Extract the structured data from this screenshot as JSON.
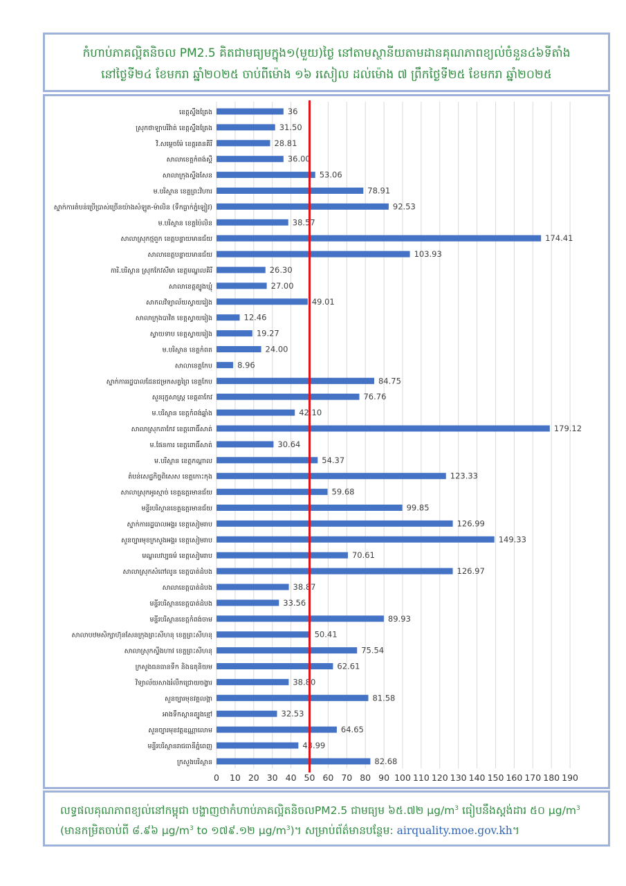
{
  "header": {
    "line1": "កំហាប់ភាគល្អិតនិចល PM2.5 គិតជាមធ្យមក្នុង១(មួយ)ថ្ងៃ នៅតាមស្ថានីយតាមដានគុណភាពខ្យល់ចំនួន៤៦ទីតាំង",
    "line2": "នៅថ្ងៃទី២៤ ខែមករា ឆ្នាំ២០២៥ ចាប់ពីម៉ោង ១៦ រសៀល ដល់ម៉ោង ៧ ព្រឹកថ្ងៃទី២៥ ខែមករា ឆ្នាំ២០២៥"
  },
  "footer": {
    "part1": "លទ្ធផលគុណភាពខ្យល់នៅកម្ពុជា បង្ហាញថាកំហាប់ភាគល្អិតនិចលPM2.5 ជាមធ្យម ៦៥.៧២ µg/m",
    "part2": " ធៀបនឹងស្តង់ដារ ៥០ µg/m",
    "part3": "(មានកម្រិតចាប់ពី ៨.៩៦ µg/m",
    "part4": " to ១៧៩.១២ µg/m",
    "part5": ")។ សម្រាប់ព័ត៌មានបន្ថែម: ",
    "link": "airquality.moe.gov.kh",
    "end": "។",
    "sup": "3"
  },
  "colors": {
    "bar": "#4472c4",
    "threshold": "#e0141c",
    "title_text": "#2e8b3f",
    "border": "#9db1d9",
    "link": "#2f64b5"
  },
  "chart_data": {
    "type": "bar",
    "orientation": "horizontal",
    "categories": [
      "ខេត្តស្ទឹងត្រែង",
      "ស្រុកថាឡាបរិវ៉ាត់ ខេត្តស្ទឹងត្រែង",
      "វិ.សម្តេចម៉ែ ខេត្តរតនគិរី",
      "សាលាខេត្តកំពង់ស្ពឺ",
      "សាលាក្រុងស្ទឹងសែន",
      "ម.បរិស្ថាន ខេត្តព្រះវិហារ",
      "ស្នាក់ការតំបន់ប្រើប្រាស់ច្រើនយ៉ាងសំឡូត-ម៉ាលិន (ទឹកធ្លាក់ភ្នំឡៀវ)",
      "ម.បរិស្ថាន ខេត្តប៉ៃលិន",
      "សាលាស្រុកថ្មពួក ខេត្តបន្ទាយមានជ័យ",
      "សាលាខេត្តបន្ទាយមានជ័យ",
      "ការិ.បរិស្ថាន ស្រុកកែវសីមា ខេត្តមណ្ឌលគិរី",
      "សាលាខេត្តត្បូងឃ្មុំ",
      "សាកលវិទ្យាល័យស្វាយរៀង",
      "សាលាក្រុងបាវិត ខេត្តស្វាយរៀង",
      "ស្វាយទាប ខេត្តស្វាយរៀង",
      "ម.បរិស្ថាន ខេត្តកំពត",
      "សាលាខេត្តកែប",
      "ស្នាក់ការរដ្ឋបាលដែនជម្រកសត្វព្រៃ ខេត្តកែប",
      "សួនរុក្ខសាស្ត្រ ខេត្តតាកែវ",
      "ម.បរិស្ថាន ខេត្តកំពង់ឆ្នាំង",
      "សាលាស្រុកតាកែវ ខេត្តពោធិ៍សាត់",
      "ម.ផែនការ ខេត្តពោធិ៍សាត់",
      "ម.បរិស្ថាន ខេត្តកណ្តាល",
      "តំបន់សេដ្ឋកិច្ចពិសេស ខេត្តកោះកុង",
      "សាលាស្រុកអូរស្មាច់ ខេត្តឧត្តរមានជ័យ",
      "មន្ទីរបរិស្ថានខេត្តឧត្តរមានជ័យ",
      "ស្នាក់ការរដ្ឋបាលអង្គរ ខេត្តសៀមរាប",
      "សួនច្បារមុខក្រសួងអង្គរ ខេត្តសៀមរាប",
      "មណ្ឌលវប្បធម៌ ខេត្តសៀមរាប",
      "សាលាស្រុកសំពៅលូន ខេត្តបាត់ដំបង",
      "សាលាខេត្តបាត់ដំបង",
      "មន្ទីរបរិស្ថានខេត្តបាត់ដំបង",
      "មន្ទីរបរិស្ថានខេត្តកំពង់ចាម",
      "សាលាបឋមសិក្សាហ៊ុនសែនក្រុងព្រះសីហនុ ខេត្តព្រះសីហនុ",
      "សាលាស្រុកស្ទឹងហាវ ខេត្តព្រះសីហនុ",
      "ក្រសួងធនធានទឹក និងឧតុនិយម",
      "វិទ្យាល័យសាងរំលឹកជ្រោយចង្វារ",
      "សួនច្បារមុខវត្តលង្កា",
      "អាងទឹកស្ពានត្បូងខ្មៅ",
      "សួនច្បារមុខវត្តឧណ្ណាលោម",
      "មន្ទីរបរិស្ថានរាជធានីភ្នំពេញ",
      "ក្រសួងបរិស្ថាន"
    ],
    "value_labels": [
      "36",
      "31.50",
      "28.81",
      "36.00",
      "53.06",
      "78.91",
      "92.53",
      "38.57",
      "174.41",
      "103.93",
      "26.30",
      "27.00",
      "49.01",
      "12.46",
      "19.27",
      "24.00",
      "8.96",
      "84.75",
      "76.76",
      "42.10",
      "179.12",
      "30.64",
      "54.37",
      "123.33",
      "59.68",
      "99.85",
      "126.99",
      "149.33",
      "70.61",
      "126.97",
      "38.87",
      "33.56",
      "89.93",
      "50.41",
      "75.54",
      "62.61",
      "38.80",
      "81.58",
      "32.53",
      "64.65",
      "43.99",
      "82.68"
    ],
    "values": [
      36,
      31.5,
      28.81,
      36,
      53.06,
      78.91,
      92.53,
      38.57,
      174.41,
      103.93,
      26.3,
      27,
      49.01,
      12.46,
      19.27,
      24,
      8.96,
      84.75,
      76.76,
      42.1,
      179.12,
      30.64,
      54.37,
      123.33,
      59.68,
      99.85,
      126.99,
      149.33,
      70.61,
      126.97,
      38.87,
      33.56,
      89.93,
      50.41,
      75.54,
      62.61,
      38.8,
      81.58,
      32.53,
      64.65,
      43.99,
      82.68
    ],
    "xlim": [
      0,
      190
    ],
    "xticks": [
      0,
      10,
      20,
      30,
      40,
      50,
      60,
      70,
      80,
      90,
      100,
      110,
      120,
      130,
      140,
      150,
      160,
      170,
      180,
      190
    ],
    "threshold": 50,
    "grid": true,
    "unit": "µg/m3"
  }
}
